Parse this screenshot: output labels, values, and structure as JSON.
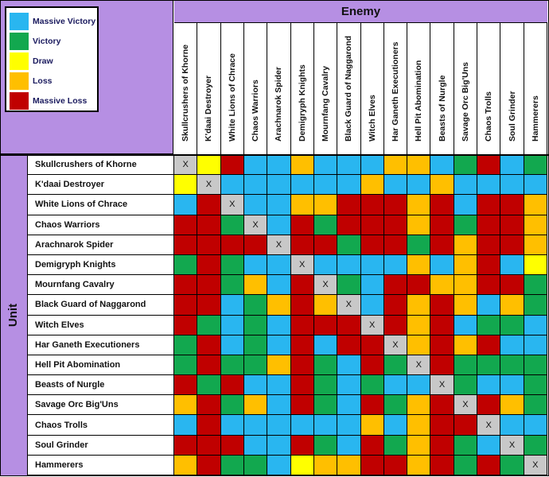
{
  "legend": [
    {
      "label": "Massive Victory",
      "color": "#29b6f0"
    },
    {
      "label": "Victory",
      "color": "#12a84f"
    },
    {
      "label": "Draw",
      "color": "#ffff00"
    },
    {
      "label": "Loss",
      "color": "#ffbf00"
    },
    {
      "label": "Massive Loss",
      "color": "#c00000"
    }
  ],
  "enemy_title": "Enemy",
  "unit_title": "Unit",
  "enemies": [
    "Skullcrushers of Khorne",
    "K'daai Destroyer",
    "White Lions of Chrace",
    "Chaos Warriors",
    "Arachnarok Spider",
    "Demigryph Knights",
    "Mournfang Cavalry",
    "Black Guard of Naggarond",
    "Witch Elves",
    "Har Ganeth Executioners",
    "Hell Pit Abomination",
    "Beasts of Nurgle",
    "Savage Orc Big'Uns",
    "Chaos Trolls",
    "Soul Grinder",
    "Hammerers"
  ],
  "units": [
    "Skullcrushers of Khorne",
    "K'daai Destroyer",
    "White Lions of Chrace",
    "Chaos Warriors",
    "Arachnarok Spider",
    "Demigryph Knights",
    "Mournfang Cavalry",
    "Black Guard of Naggarond",
    "Witch Elves",
    "Har Ganeth Executioners",
    "Hell Pit Abomination",
    "Beasts of Nurgle",
    "Savage Orc Big'Uns",
    "Chaos Trolls",
    "Soul Grinder",
    "Hammerers"
  ],
  "self_mark": "X",
  "matrix": [
    [
      "X",
      "D",
      "ML",
      "MV",
      "MV",
      "L",
      "MV",
      "MV",
      "MV",
      "L",
      "L",
      "MV",
      "V",
      "ML",
      "MV",
      "V"
    ],
    [
      "D",
      "X",
      "MV",
      "MV",
      "MV",
      "MV",
      "MV",
      "MV",
      "L",
      "MV",
      "MV",
      "L",
      "MV",
      "MV",
      "MV",
      "MV"
    ],
    [
      "MV",
      "ML",
      "X",
      "MV",
      "MV",
      "L",
      "L",
      "ML",
      "ML",
      "ML",
      "L",
      "ML",
      "MV",
      "ML",
      "ML",
      "L"
    ],
    [
      "ML",
      "ML",
      "V",
      "X",
      "MV",
      "ML",
      "V",
      "ML",
      "ML",
      "ML",
      "L",
      "ML",
      "V",
      "ML",
      "ML",
      "L"
    ],
    [
      "ML",
      "ML",
      "ML",
      "ML",
      "X",
      "ML",
      "ML",
      "V",
      "ML",
      "ML",
      "V",
      "ML",
      "L",
      "ML",
      "ML",
      "L"
    ],
    [
      "V",
      "ML",
      "V",
      "MV",
      "MV",
      "X",
      "MV",
      "MV",
      "MV",
      "MV",
      "L",
      "MV",
      "L",
      "ML",
      "MV",
      "D"
    ],
    [
      "ML",
      "ML",
      "V",
      "L",
      "MV",
      "ML",
      "X",
      "V",
      "MV",
      "ML",
      "ML",
      "L",
      "L",
      "ML",
      "ML",
      "V"
    ],
    [
      "ML",
      "ML",
      "MV",
      "V",
      "L",
      "ML",
      "L",
      "X",
      "MV",
      "ML",
      "L",
      "ML",
      "L",
      "MV",
      "L",
      "V"
    ],
    [
      "ML",
      "V",
      "MV",
      "V",
      "MV",
      "ML",
      "ML",
      "ML",
      "X",
      "ML",
      "L",
      "ML",
      "MV",
      "V",
      "V",
      "MV"
    ],
    [
      "V",
      "ML",
      "MV",
      "V",
      "MV",
      "ML",
      "MV",
      "ML",
      "ML",
      "X",
      "L",
      "ML",
      "L",
      "ML",
      "MV",
      "MV"
    ],
    [
      "V",
      "ML",
      "V",
      "V",
      "L",
      "ML",
      "V",
      "MV",
      "ML",
      "V",
      "X",
      "ML",
      "V",
      "V",
      "V",
      "V"
    ],
    [
      "ML",
      "V",
      "ML",
      "MV",
      "MV",
      "ML",
      "V",
      "MV",
      "V",
      "MV",
      "MV",
      "X",
      "V",
      "MV",
      "MV",
      "V"
    ],
    [
      "L",
      "ML",
      "V",
      "L",
      "MV",
      "ML",
      "V",
      "MV",
      "ML",
      "V",
      "L",
      "ML",
      "X",
      "ML",
      "L",
      "V"
    ],
    [
      "MV",
      "ML",
      "MV",
      "MV",
      "MV",
      "MV",
      "MV",
      "MV",
      "L",
      "MV",
      "L",
      "ML",
      "ML",
      "X",
      "MV",
      "MV"
    ],
    [
      "ML",
      "ML",
      "ML",
      "MV",
      "MV",
      "ML",
      "V",
      "MV",
      "ML",
      "V",
      "L",
      "ML",
      "V",
      "MV",
      "X",
      "V"
    ],
    [
      "L",
      "ML",
      "V",
      "V",
      "MV",
      "D",
      "L",
      "L",
      "ML",
      "ML",
      "L",
      "ML",
      "V",
      "ML",
      "V",
      "X"
    ]
  ],
  "codes": {
    "MV": "#29b6f0",
    "V": "#12a84f",
    "D": "#ffff00",
    "L": "#ffbf00",
    "ML": "#c00000",
    "X": "#c8c8c8"
  }
}
